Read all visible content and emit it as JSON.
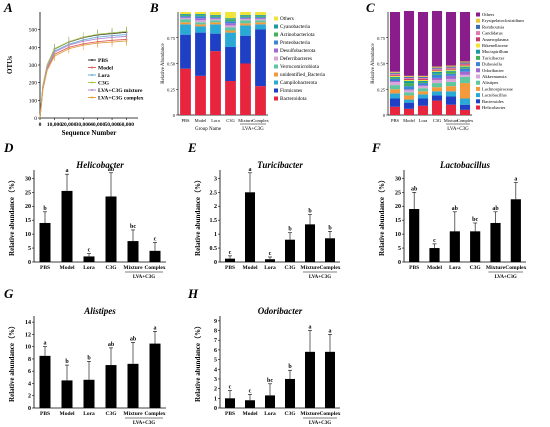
{
  "panels": [
    {
      "label": "A"
    },
    {
      "label": "B"
    },
    {
      "label": "C"
    },
    {
      "label": "D"
    },
    {
      "label": "E"
    },
    {
      "label": "F"
    },
    {
      "label": "G"
    },
    {
      "label": "H"
    }
  ],
  "group_bracket": "LVA+C3G",
  "chart_data": [
    {
      "panel": "A",
      "type": "line",
      "xlabel": "Sequence Number",
      "ylabel": "OTUs",
      "x": [
        0,
        2000,
        5000,
        10000,
        20000,
        30000,
        40000,
        50000,
        60000
      ],
      "xticks": [
        0,
        10000,
        20000,
        30000,
        40000,
        50000,
        60000
      ],
      "xtick_labels": [
        "0",
        "10,000",
        "20,000",
        "30,000",
        "40,000",
        "50,000",
        "60,000"
      ],
      "yticks": [
        0,
        100,
        200,
        300,
        400,
        500
      ],
      "xlim": [
        0,
        68000
      ],
      "ylim": [
        0,
        600
      ],
      "series": [
        {
          "name": "PBS",
          "color": "#333333",
          "values": [
            0,
            180,
            300,
            390,
            430,
            455,
            470,
            478,
            485
          ]
        },
        {
          "name": "Model",
          "color": "#e06060",
          "values": [
            0,
            165,
            280,
            360,
            400,
            420,
            432,
            440,
            445
          ]
        },
        {
          "name": "Lora",
          "color": "#6aaed6",
          "values": [
            0,
            175,
            292,
            378,
            418,
            442,
            458,
            466,
            472
          ]
        },
        {
          "name": "C3G",
          "color": "#a8c84a",
          "values": [
            0,
            182,
            300,
            392,
            432,
            458,
            474,
            482,
            490
          ]
        },
        {
          "name": "LVA+C3G mixture",
          "color": "#b48ad6",
          "values": [
            0,
            170,
            288,
            372,
            412,
            434,
            448,
            456,
            462
          ]
        },
        {
          "name": "LVA+C3G complex",
          "color": "#e0a040",
          "values": [
            0,
            160,
            270,
            350,
            392,
            412,
            424,
            430,
            436
          ]
        }
      ]
    },
    {
      "panel": "B",
      "type": "bar",
      "stacked": true,
      "xlabel": "Group Name",
      "ylabel": "Relative Abundance",
      "categories": [
        "PBS",
        "Model",
        "Lora",
        "C3G",
        "Mixture",
        "Complex"
      ],
      "yticks": [
        0,
        0.25,
        0.5,
        0.75
      ],
      "ytick_labels": [
        "0",
        "0.25",
        "0.50",
        "0.75"
      ],
      "ylim": [
        0,
        1
      ],
      "series": [
        {
          "name": "Bacteroidota",
          "color": "#e8253f",
          "values": [
            0.45,
            0.38,
            0.62,
            0.33,
            0.5,
            0.28
          ]
        },
        {
          "name": "Firmicutes",
          "color": "#1f3fc4",
          "values": [
            0.33,
            0.42,
            0.17,
            0.33,
            0.27,
            0.55
          ]
        },
        {
          "name": "Campilobacterota",
          "color": "#2aa9d6",
          "values": [
            0.1,
            0.06,
            0.09,
            0.14,
            0.1,
            0.05
          ]
        },
        {
          "name": "unidentified_Bacteria",
          "color": "#f49a3c",
          "values": [
            0.02,
            0.02,
            0.02,
            0.02,
            0.02,
            0.02
          ]
        },
        {
          "name": "Verrucomicrobiota",
          "color": "#5fc7a0",
          "values": [
            0.03,
            0.02,
            0.02,
            0.03,
            0.03,
            0.02
          ]
        },
        {
          "name": "Deferribacteres",
          "color": "#d9a6d9",
          "values": [
            0.01,
            0.02,
            0.01,
            0.02,
            0.01,
            0.01
          ]
        },
        {
          "name": "Desulfobacterota",
          "color": "#a06ad0",
          "values": [
            0.01,
            0.02,
            0.01,
            0.02,
            0.01,
            0.01
          ]
        },
        {
          "name": "Proteobacteria",
          "color": "#3a86d6",
          "values": [
            0.01,
            0.02,
            0.01,
            0.02,
            0.01,
            0.01
          ]
        },
        {
          "name": "Actinobacteriota",
          "color": "#44b05a",
          "values": [
            0.01,
            0.01,
            0.01,
            0.02,
            0.01,
            0.01
          ]
        },
        {
          "name": "Cyanobacteria",
          "color": "#1a9aa0",
          "values": [
            0.01,
            0.01,
            0.01,
            0.01,
            0.01,
            0.01
          ]
        },
        {
          "name": "Others",
          "color": "#f0e43a",
          "values": [
            0.02,
            0.02,
            0.03,
            0.06,
            0.03,
            0.03
          ]
        }
      ]
    },
    {
      "panel": "C",
      "type": "bar",
      "stacked": true,
      "ylabel": "Relative Abundance",
      "categories": [
        "PBS",
        "Model",
        "Lora",
        "C3G",
        "Mixture",
        "Complex"
      ],
      "yticks": [
        0,
        0.25,
        0.5,
        0.75
      ],
      "ytick_labels": [
        "0",
        "0.25",
        "0.50",
        "0.75"
      ],
      "ylim": [
        0,
        1
      ],
      "series": [
        {
          "name": "Helicobacter",
          "color": "#e8253f",
          "values": [
            0.08,
            0.06,
            0.09,
            0.14,
            0.1,
            0.05
          ]
        },
        {
          "name": "Bacteroides",
          "color": "#1f3fc4",
          "values": [
            0.08,
            0.06,
            0.07,
            0.05,
            0.08,
            0.05
          ]
        },
        {
          "name": "Lactobacillus",
          "color": "#2aa9d6",
          "values": [
            0.05,
            0.03,
            0.04,
            0.04,
            0.05,
            0.06
          ]
        },
        {
          "name": "Lachnospiraceae",
          "color": "#f49a3c",
          "values": [
            0.04,
            0.04,
            0.03,
            0.04,
            0.05,
            0.15
          ]
        },
        {
          "name": "Alistipes",
          "color": "#5fc7a0",
          "values": [
            0.04,
            0.03,
            0.03,
            0.04,
            0.04,
            0.06
          ]
        },
        {
          "name": "Akkermansia",
          "color": "#d9a6d9",
          "values": [
            0.03,
            0.02,
            0.02,
            0.03,
            0.03,
            0.02
          ]
        },
        {
          "name": "Odoribacter",
          "color": "#a06ad0",
          "values": [
            0.01,
            0.01,
            0.01,
            0.02,
            0.03,
            0.03
          ]
        },
        {
          "name": "Dubosiella",
          "color": "#3a86d6",
          "values": [
            0.02,
            0.03,
            0.02,
            0.03,
            0.02,
            0.03
          ]
        },
        {
          "name": "Turicibacter",
          "color": "#44b05a",
          "values": [
            0.01,
            0.03,
            0.01,
            0.01,
            0.02,
            0.01
          ]
        },
        {
          "name": "Mucispirillum",
          "color": "#1a9aa0",
          "values": [
            0.01,
            0.02,
            0.01,
            0.02,
            0.01,
            0.01
          ]
        },
        {
          "name": "Rikenellaceae",
          "color": "#f0e43a",
          "values": [
            0.01,
            0.01,
            0.01,
            0.01,
            0.01,
            0.01
          ]
        },
        {
          "name": "Anaeroplasma",
          "color": "#c93a6a",
          "values": [
            0.01,
            0.01,
            0.01,
            0.01,
            0.01,
            0.01
          ]
        },
        {
          "name": "Candidatus",
          "color": "#e07ab0",
          "values": [
            0.01,
            0.01,
            0.01,
            0.01,
            0.01,
            0.01
          ]
        },
        {
          "name": "Romboutsia",
          "color": "#3a6ab0",
          "values": [
            0.01,
            0.01,
            0.01,
            0.01,
            0.01,
            0.01
          ]
        },
        {
          "name": "Erysipelatoclostridium",
          "color": "#e6c53a",
          "values": [
            0.01,
            0.01,
            0.01,
            0.01,
            0.01,
            0.01
          ]
        },
        {
          "name": "Others",
          "color": "#8a1c8c",
          "values": [
            0.58,
            0.63,
            0.62,
            0.54,
            0.52,
            0.48
          ]
        }
      ]
    },
    {
      "panel": "D",
      "type": "bar",
      "title": "Helicobacter",
      "ylabel": "Relative abundance（%）",
      "categories": [
        "PBS",
        "Model",
        "Lora",
        "C3G",
        "Mixture",
        "Complex"
      ],
      "values": [
        14,
        25.5,
        2,
        23.5,
        7.5,
        4
      ],
      "errors": [
        4,
        6,
        1,
        8.5,
        4,
        3
      ],
      "letters": [
        "b",
        "a",
        "c",
        "ab",
        "bc",
        "c"
      ],
      "yticks": [
        0,
        5,
        10,
        15,
        20,
        25,
        30
      ],
      "ylim": [
        0,
        33
      ]
    },
    {
      "panel": "E",
      "type": "bar",
      "title": "Turicibacter",
      "ylabel": "Relative abundance（%）",
      "categories": [
        "PBS",
        "Model",
        "Lora",
        "C3G",
        "Mixture",
        "Complex"
      ],
      "values": [
        0.12,
        2.5,
        0.1,
        0.8,
        1.35,
        0.85
      ],
      "errors": [
        0.1,
        0.7,
        0.08,
        0.25,
        0.35,
        0.25
      ],
      "letters": [
        "c",
        "a",
        "c",
        "b",
        "b",
        "b"
      ],
      "yticks": [
        0,
        0.5,
        1,
        1.5,
        2,
        2.5,
        3
      ],
      "ylim": [
        0,
        3.3
      ]
    },
    {
      "panel": "F",
      "type": "bar",
      "title": "Lactobacillus",
      "ylabel": "Relative abundance（%）",
      "categories": [
        "PBS",
        "Model",
        "Lora",
        "C3G",
        "Mixture",
        "Complex"
      ],
      "values": [
        19,
        5,
        11,
        11,
        14,
        22.5
      ],
      "errors": [
        6,
        1.5,
        7,
        3,
        4,
        6
      ],
      "letters": [
        "ab",
        "c",
        "ab",
        "bc",
        "ab",
        "a"
      ],
      "yticks": [
        0,
        5,
        10,
        15,
        20,
        25,
        30
      ],
      "ylim": [
        0,
        33
      ]
    },
    {
      "panel": "G",
      "type": "bar",
      "title": "Alistipes",
      "ylabel": "Relative abundance（%）",
      "categories": [
        "PBS",
        "Model",
        "Lora",
        "C3G",
        "Mixture",
        "Complex"
      ],
      "values": [
        8.5,
        4.5,
        4.6,
        7.0,
        7.2,
        10.5
      ],
      "errors": [
        1.5,
        2.5,
        3.0,
        2.8,
        3.5,
        2.0
      ],
      "letters": [
        "a",
        "b",
        "b",
        "ab",
        "ab",
        "a"
      ],
      "yticks": [
        0,
        2,
        4,
        6,
        8,
        10,
        12,
        14
      ],
      "ylim": [
        0,
        15
      ]
    },
    {
      "panel": "H",
      "type": "bar",
      "title": "Odoribacter",
      "ylabel": "Relative abundance（%）",
      "categories": [
        "PBS",
        "Model",
        "Lora",
        "C3G",
        "Mixture",
        "Complex"
      ],
      "values": [
        1.0,
        0.8,
        1.3,
        3.0,
        5.8,
        5.8
      ],
      "errors": [
        0.8,
        0.6,
        1.2,
        0.9,
        2.2,
        1.8
      ],
      "letters": [
        "c",
        "c",
        "bc",
        "b",
        "a",
        "a"
      ],
      "yticks": [
        0,
        1,
        2,
        3,
        4,
        5,
        6,
        7,
        8,
        9
      ],
      "ylim": [
        0,
        9.5
      ]
    }
  ]
}
